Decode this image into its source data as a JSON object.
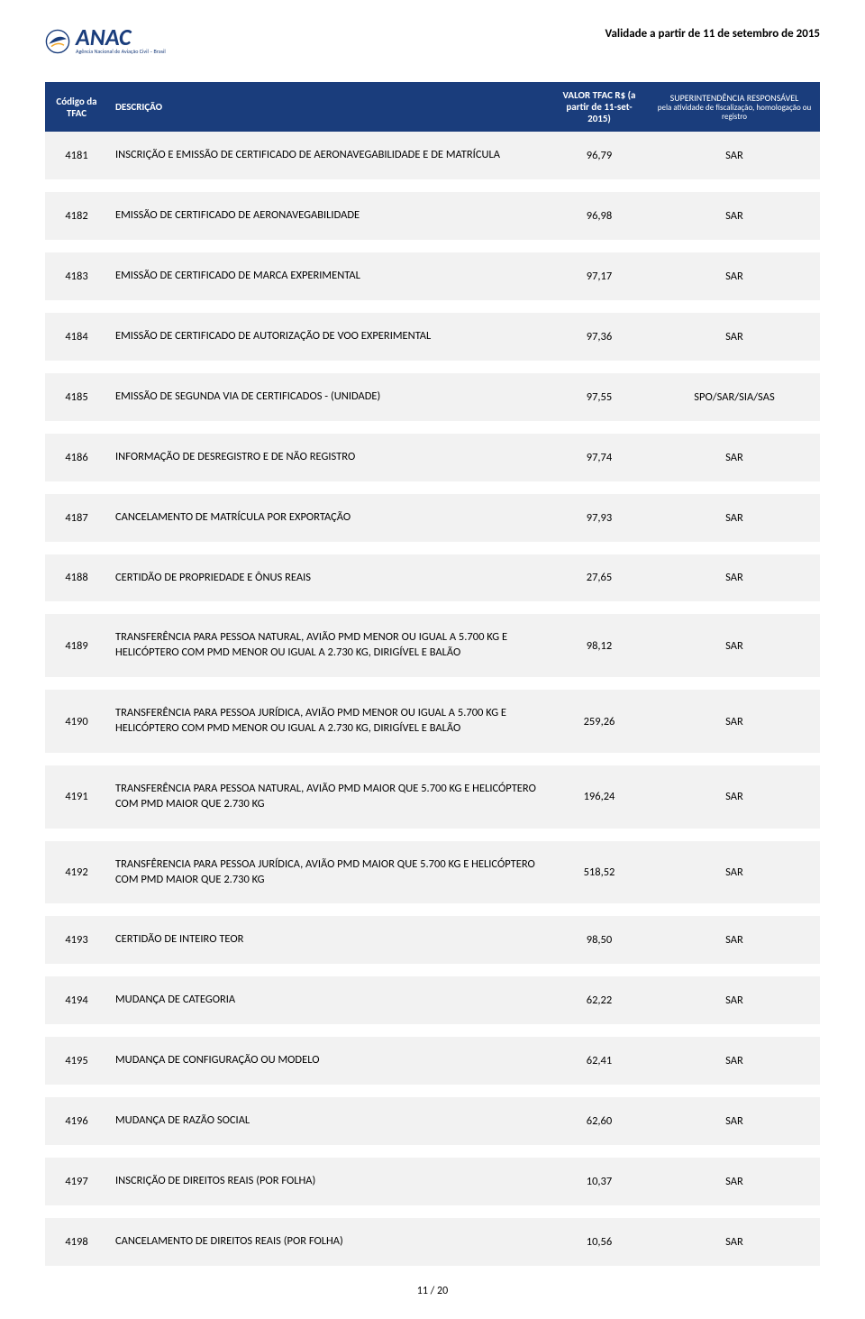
{
  "header": {
    "logo_main": "ANAC",
    "logo_sub": "Agência Nacional de Aviação Civil – Brasil",
    "validity": "Validade a partir de 11 de setembro de 2015"
  },
  "table": {
    "columns": {
      "code": "Código da TFAC",
      "desc": "DESCRIÇÃO",
      "val": "VALOR TFAC R$ (a partir de 11-set-2015)",
      "sup_line1": "SUPERINTENDÊNCIA RESPONSÁVEL",
      "sup_line2": "pela atividade de fiscalização, homologação ou registro"
    },
    "rows": [
      {
        "code": "4181",
        "desc": "INSCRIÇÃO E EMISSÃO DE CERTIFICADO DE AERONAVEGABILIDADE E DE MATRÍCULA",
        "val": "96,79",
        "sup": "SAR"
      },
      {
        "code": "4182",
        "desc": "EMISSÃO DE CERTIFICADO DE AERONAVEGABILIDADE",
        "val": "96,98",
        "sup": "SAR"
      },
      {
        "code": "4183",
        "desc": "EMISSÃO DE CERTIFICADO DE MARCA EXPERIMENTAL",
        "val": "97,17",
        "sup": "SAR"
      },
      {
        "code": "4184",
        "desc": "EMISSÃO DE CERTIFICADO DE AUTORIZAÇÃO DE VOO EXPERIMENTAL",
        "val": "97,36",
        "sup": "SAR"
      },
      {
        "code": "4185",
        "desc": "EMISSÃO DE SEGUNDA VIA DE CERTIFICADOS - (UNIDADE)",
        "val": "97,55",
        "sup": "SPO/SAR/SIA/SAS"
      },
      {
        "code": "4186",
        "desc": "INFORMAÇÃO DE DESREGISTRO E DE NÃO REGISTRO",
        "val": "97,74",
        "sup": "SAR"
      },
      {
        "code": "4187",
        "desc": "CANCELAMENTO DE MATRÍCULA POR EXPORTAÇÃO",
        "val": "97,93",
        "sup": "SAR"
      },
      {
        "code": "4188",
        "desc": "CERTIDÃO DE PROPRIEDADE E ÔNUS REAIS",
        "val": "27,65",
        "sup": "SAR"
      },
      {
        "code": "4189",
        "desc": "TRANSFERÊNCIA PARA PESSOA NATURAL, AVIÃO PMD MENOR OU IGUAL A 5.700 KG E HELICÓPTERO COM PMD MENOR OU IGUAL A 2.730 KG, DIRIGÍVEL E BALÃO",
        "val": "98,12",
        "sup": "SAR"
      },
      {
        "code": "4190",
        "desc": "TRANSFERÊNCIA PARA PESSOA JURÍDICA, AVIÃO PMD MENOR OU IGUAL A 5.700 KG E HELICÓPTERO COM PMD MENOR OU IGUAL A 2.730 KG, DIRIGÍVEL E BALÃO",
        "val": "259,26",
        "sup": "SAR"
      },
      {
        "code": "4191",
        "desc": "TRANSFERÊNCIA PARA PESSOA NATURAL, AVIÃO PMD MAIOR QUE 5.700 KG E HELICÓPTERO COM PMD MAIOR QUE 2.730 KG",
        "val": "196,24",
        "sup": "SAR"
      },
      {
        "code": "4192",
        "desc": "TRANSFÊRENCIA PARA PESSOA JURÍDICA, AVIÃO PMD MAIOR QUE 5.700 KG E HELICÓPTERO COM PMD MAIOR QUE 2.730 KG",
        "val": "518,52",
        "sup": "SAR"
      },
      {
        "code": "4193",
        "desc": "CERTIDÃO DE INTEIRO TEOR",
        "val": "98,50",
        "sup": "SAR"
      },
      {
        "code": "4194",
        "desc": "MUDANÇA DE CATEGORIA",
        "val": "62,22",
        "sup": "SAR"
      },
      {
        "code": "4195",
        "desc": "MUDANÇA DE CONFIGURAÇÃO OU MODELO",
        "val": "62,41",
        "sup": "SAR"
      },
      {
        "code": "4196",
        "desc": "MUDANÇA DE RAZÃO SOCIAL",
        "val": "62,60",
        "sup": "SAR"
      },
      {
        "code": "4197",
        "desc": "INSCRIÇÃO DE DIREITOS REAIS (POR FOLHA)",
        "val": "10,37",
        "sup": "SAR"
      },
      {
        "code": "4198",
        "desc": "CANCELAMENTO DE DIREITOS REAIS (POR FOLHA)",
        "val": "10,56",
        "sup": "SAR"
      }
    ]
  },
  "footer": {
    "page": "11 / 20"
  },
  "style": {
    "header_bg": "#1a3d7c",
    "header_fg": "#ffffff",
    "row_bg": "#f2f2f2",
    "page_bg": "#ffffff",
    "text_color": "#000000",
    "logo_color": "#1a3d7c"
  }
}
